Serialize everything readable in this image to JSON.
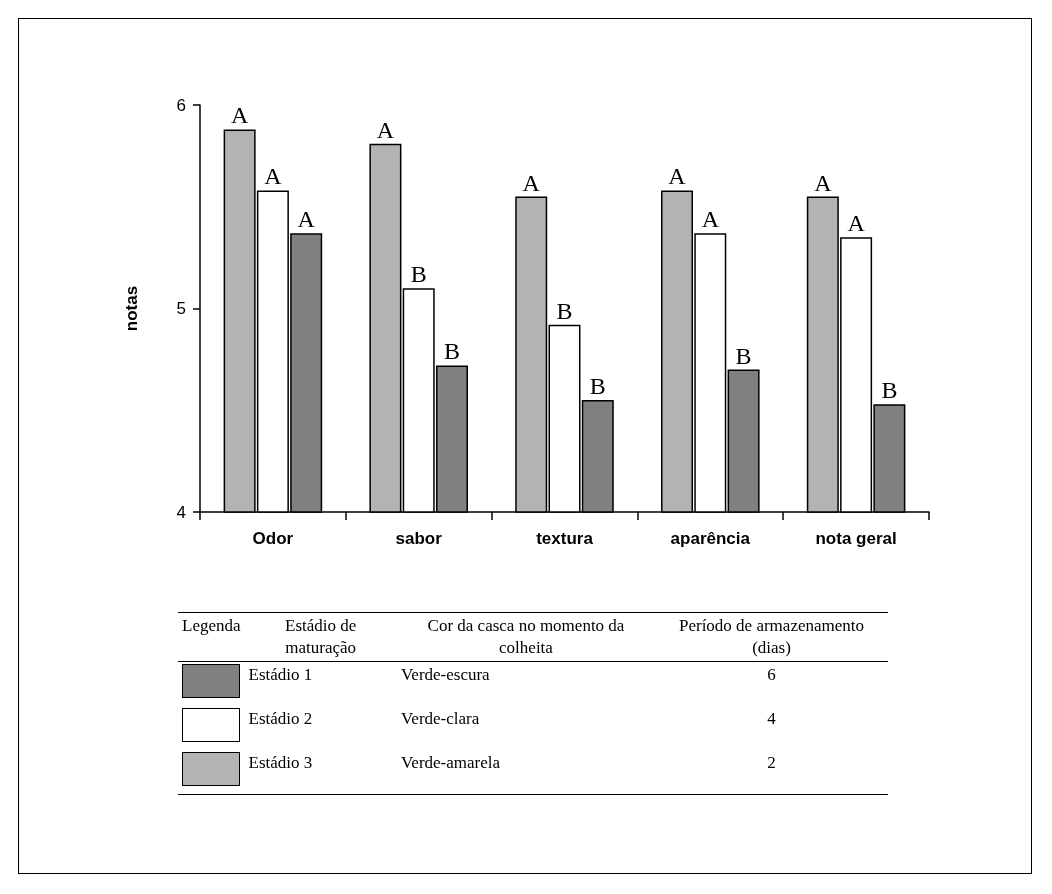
{
  "chart_data": {
    "type": "bar",
    "ylabel": "notas",
    "categories": [
      "Odor",
      "sabor",
      "textura",
      "aparência",
      "nota geral"
    ],
    "series": [
      {
        "name": "Estádio 3",
        "color": "#b3b3b3",
        "values": [
          5.88,
          5.81,
          5.55,
          5.58,
          5.55
        ],
        "value_labels": [
          "A",
          "A",
          "A",
          "A",
          "A"
        ]
      },
      {
        "name": "Estádio 2",
        "color": "#ffffff",
        "values": [
          5.58,
          5.1,
          4.92,
          5.37,
          5.35
        ],
        "value_labels": [
          "A",
          "B",
          "B",
          "A",
          "A"
        ]
      },
      {
        "name": "Estádio 1",
        "color": "#808080",
        "values": [
          5.37,
          4.72,
          4.55,
          4.7,
          4.53
        ],
        "value_labels": [
          "A",
          "B",
          "B",
          "B",
          "B"
        ]
      }
    ],
    "ylim": [
      4,
      6
    ],
    "yticks": [
      4,
      5,
      6
    ],
    "grid": false,
    "legend": "bottom",
    "annotations": [
      "Legenda",
      "Estádio de maturação",
      "Cor da casca no momento da colheita",
      "Período de armazenamento (dias)",
      "Verde-escura",
      "6",
      "Verde-clara",
      "4",
      "Verde-amarela",
      "2"
    ]
  }
}
